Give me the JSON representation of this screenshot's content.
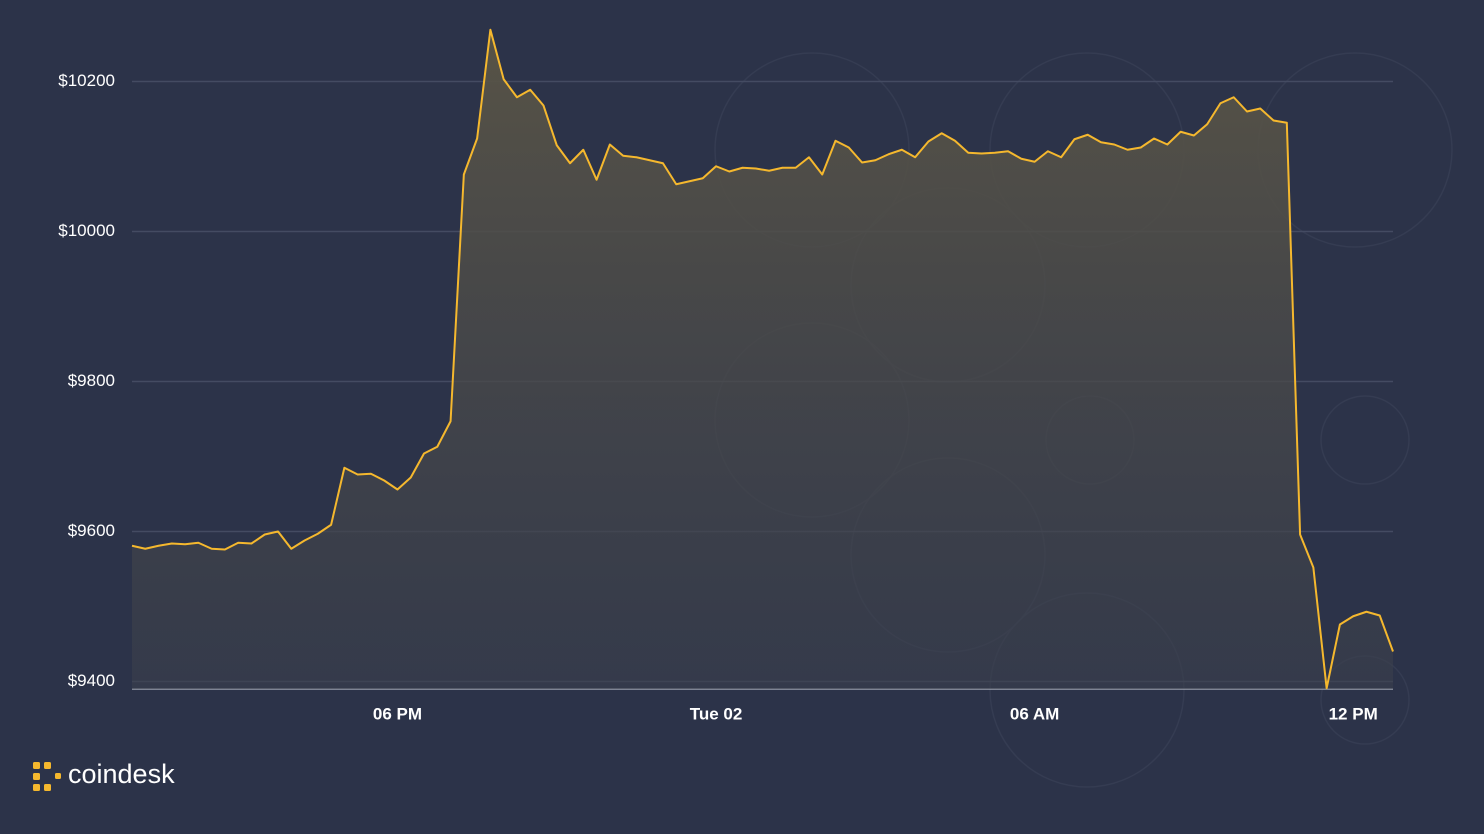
{
  "chart_data": {
    "type": "area",
    "categories": [
      null,
      null,
      null,
      null,
      null,
      null,
      null,
      null,
      null,
      null,
      null,
      null,
      null,
      null,
      null,
      null,
      null,
      null,
      null,
      null,
      "06 PM",
      null,
      null,
      null,
      null,
      null,
      null,
      null,
      null,
      null,
      null,
      null,
      null,
      null,
      null,
      null,
      null,
      null,
      null,
      null,
      null,
      null,
      null,
      null,
      "Tue 02",
      null,
      null,
      null,
      null,
      null,
      null,
      null,
      null,
      null,
      null,
      null,
      null,
      null,
      null,
      null,
      null,
      null,
      null,
      null,
      null,
      null,
      null,
      null,
      "06 AM",
      null,
      null,
      null,
      null,
      null,
      null,
      null,
      null,
      null,
      null,
      null,
      null,
      null,
      null,
      null,
      null,
      null,
      null,
      null,
      null,
      null,
      null,
      null,
      "12 PM",
      null,
      null,
      null
    ],
    "values": [
      9581,
      9577,
      9581,
      9584,
      9583,
      9585,
      9577,
      9576,
      9585,
      9584,
      9596,
      9600,
      9577,
      9588,
      9597,
      9609,
      9685,
      9676,
      9677,
      9668,
      9656,
      9672,
      9704,
      9713,
      9747,
      10076,
      10124,
      10269,
      10203,
      10179,
      10189,
      10168,
      10115,
      10091,
      10109,
      10069,
      10116,
      10101,
      10099,
      10095,
      10091,
      10063,
      10067,
      10071,
      10087,
      10080,
      10085,
      10084,
      10081,
      10085,
      10085,
      10099,
      10076,
      10121,
      10112,
      10092,
      10095,
      10103,
      10109,
      10099,
      10120,
      10131,
      10121,
      10105,
      10104,
      10105,
      10107,
      10097,
      10093,
      10107,
      10099,
      10123,
      10129,
      10119,
      10116,
      10109,
      10112,
      10124,
      10116,
      10133,
      10128,
      10143,
      10171,
      10179,
      10160,
      10164,
      10148,
      10145,
      9596,
      9552,
      9391,
      9476,
      9487,
      9493,
      9488,
      9440
    ],
    "color": "#f5b82e",
    "ylim": [
      9390,
      10280
    ],
    "yticks": [
      {
        "value": 9400,
        "label": "$9400"
      },
      {
        "value": 9600,
        "label": "$9600"
      },
      {
        "value": 9800,
        "label": "$9800"
      },
      {
        "value": 10000,
        "label": "$10000"
      },
      {
        "value": 10200,
        "label": "$10200"
      }
    ],
    "grid": true,
    "source": "coindesk"
  }
}
